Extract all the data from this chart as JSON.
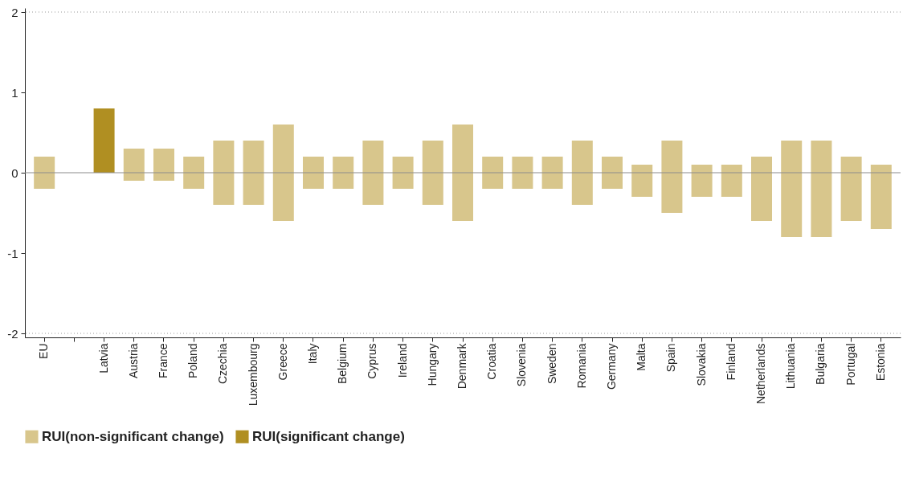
{
  "chart_data": {
    "type": "bar",
    "categories": [
      "EU",
      null,
      "Latvia",
      "Austria",
      "France",
      "Poland",
      "Czechia",
      "Luxembourg",
      "Greece",
      "Italy",
      "Belgium",
      "Cyprus",
      "Ireland",
      "Hungary",
      "Denmark",
      "Croatia",
      "Slovenia",
      "Sweden",
      "Romania",
      "Germany",
      "Malta",
      "Spain",
      "Slovakia",
      "Finland",
      "Netherlands",
      "Lithuania",
      "Bulgaria",
      "Portugal",
      "Estonia"
    ],
    "series": [
      {
        "name": "RUI(non-significant change)",
        "color": "#d8c68c",
        "base": [
          -0.2,
          null,
          null,
          -0.1,
          -0.1,
          -0.2,
          -0.4,
          -0.4,
          -0.6,
          -0.2,
          -0.2,
          -0.4,
          -0.2,
          -0.4,
          -0.6,
          -0.2,
          -0.2,
          -0.2,
          -0.4,
          -0.2,
          -0.3,
          -0.5,
          -0.3,
          -0.3,
          -0.6,
          -0.8,
          -0.8,
          -0.6,
          -0.7
        ],
        "values": [
          0.4,
          null,
          null,
          0.4,
          0.4,
          0.4,
          0.8,
          0.8,
          1.2,
          0.4,
          0.4,
          0.8,
          0.4,
          0.8,
          1.2,
          0.4,
          0.4,
          0.4,
          0.8,
          0.4,
          0.4,
          0.9,
          0.4,
          0.4,
          0.8,
          1.2,
          1.2,
          0.8,
          0.8
        ]
      },
      {
        "name": "RUI(significant change)",
        "color": "#b08f22",
        "base": [
          null,
          null,
          0,
          null,
          null,
          null,
          null,
          null,
          null,
          null,
          null,
          null,
          null,
          null,
          null,
          null,
          null,
          null,
          null,
          null,
          null,
          null,
          null,
          null,
          null,
          null,
          null,
          null,
          null
        ],
        "values": [
          null,
          null,
          0.8,
          null,
          null,
          null,
          null,
          null,
          null,
          null,
          null,
          null,
          null,
          null,
          null,
          null,
          null,
          null,
          null,
          null,
          null,
          null,
          null,
          null,
          null,
          null,
          null,
          null,
          null
        ]
      }
    ],
    "ylim": [
      -2.05,
      2.05
    ],
    "yticks": [
      -2,
      -1,
      0,
      1,
      2
    ],
    "grid": false,
    "legend": "bottom",
    "ref_lines": [
      {
        "axis": "y",
        "value": 0,
        "color": "#8c8c8c",
        "line_style": "solid"
      },
      {
        "axis": "y",
        "value": 2,
        "color": "#9a9a9a",
        "line_style": "dotted"
      },
      {
        "axis": "y",
        "value": -2,
        "color": "#9a9a9a",
        "line_style": "dotted"
      }
    ]
  }
}
